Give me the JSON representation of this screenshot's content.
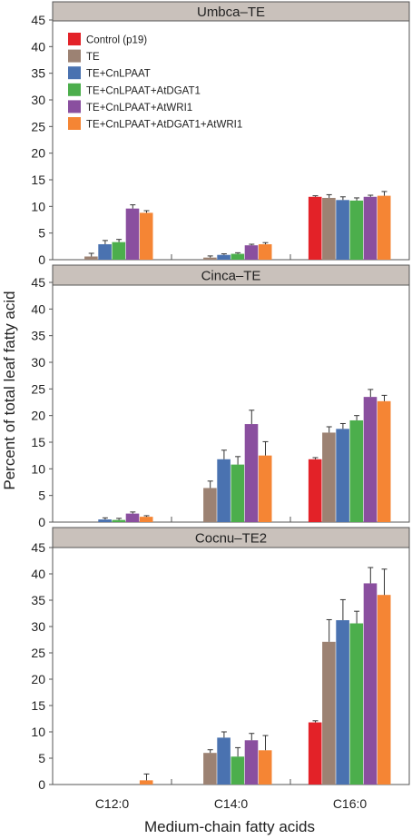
{
  "chart_data": {
    "type": "bar",
    "xlabel": "Medium-chain fatty acids",
    "ylabel": "Percent of total leaf fatty acid",
    "ylim": [
      0,
      45
    ],
    "yticks": [
      "0",
      "5",
      "10",
      "15",
      "20",
      "25",
      "30",
      "35",
      "40",
      "45"
    ],
    "categories": [
      "C12:0",
      "C14:0",
      "C16:0"
    ],
    "legend_position": "top-left",
    "series_meta": [
      {
        "name": "Control (p19)",
        "color": "#e32228"
      },
      {
        "name": "TE",
        "color": "#9c8273"
      },
      {
        "name": "TE+CnLPAAT",
        "color": "#4a72b0"
      },
      {
        "name": "TE+CnLPAAT+AtDGAT1",
        "color": "#4cae4c"
      },
      {
        "name": "TE+CnLPAAT+AtWRI1",
        "color": "#8a4f9f"
      },
      {
        "name": "TE+CnLPAAT+AtDGAT1+AtWRI1",
        "color": "#f58534"
      }
    ],
    "panels": [
      {
        "title": "Umbca–TE",
        "values": [
          [
            0,
            0.6,
            2.9,
            3.3,
            9.6,
            8.8
          ],
          [
            0,
            0.4,
            0.9,
            1.1,
            2.7,
            2.9
          ],
          [
            11.8,
            11.6,
            11.2,
            11.1,
            11.8,
            12.0
          ]
        ],
        "errors": [
          [
            0,
            0.6,
            0.7,
            0.5,
            0.7,
            0.4
          ],
          [
            0,
            0.3,
            0.2,
            0.2,
            0.2,
            0.3
          ],
          [
            0.2,
            0.6,
            0.6,
            0.5,
            0.3,
            0.8
          ]
        ]
      },
      {
        "title": "Cinca–TE",
        "values": [
          [
            0,
            0,
            0.5,
            0.4,
            1.6,
            1.0
          ],
          [
            0,
            6.4,
            11.8,
            10.8,
            18.4,
            12.5
          ],
          [
            11.8,
            16.8,
            17.5,
            19.1,
            23.5,
            22.7
          ]
        ],
        "errors": [
          [
            0,
            0,
            0.3,
            0.3,
            0.3,
            0.2
          ],
          [
            0,
            1.3,
            1.7,
            1.5,
            2.6,
            2.6
          ],
          [
            0.3,
            1.1,
            1.0,
            0.9,
            1.4,
            1.1
          ]
        ]
      },
      {
        "title": "Cocnu–TE2",
        "values": [
          [
            0,
            0,
            0,
            0,
            0,
            0.8
          ],
          [
            0,
            6.0,
            8.9,
            5.3,
            8.4,
            6.5
          ],
          [
            11.8,
            27.1,
            31.2,
            30.6,
            38.2,
            36.0
          ]
        ],
        "errors": [
          [
            0,
            0,
            0,
            0,
            0,
            1.2
          ],
          [
            0,
            0.6,
            1.1,
            1.7,
            1.3,
            2.8
          ],
          [
            0.3,
            4.2,
            3.9,
            2.3,
            3.0,
            4.9
          ]
        ]
      }
    ]
  }
}
